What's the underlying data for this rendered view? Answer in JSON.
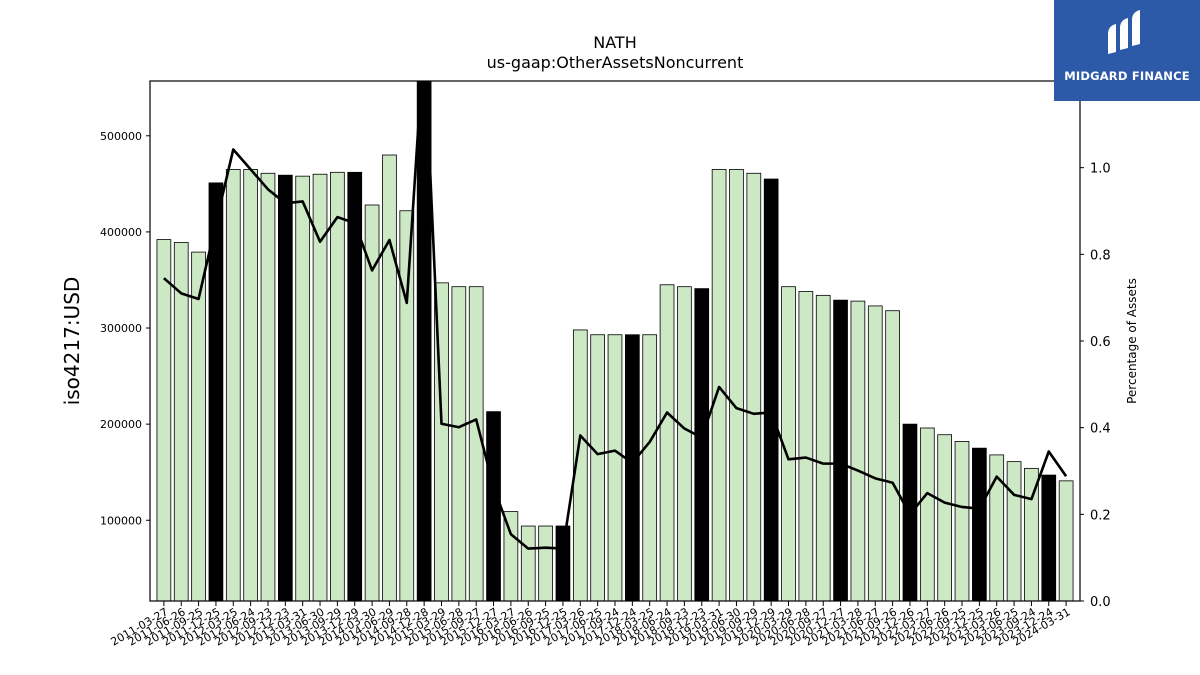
{
  "header": {
    "title": "NATH",
    "subtitle": "us-gaap:OtherAssetsNoncurrent"
  },
  "logo": {
    "name": "MIDGARD FINANCE"
  },
  "colors": {
    "bar_normal": "#cde8c5",
    "bar_highlight": "#000000",
    "line": "#000000"
  },
  "chart_data": {
    "type": "bar",
    "title": "NATH",
    "subtitle": "us-gaap:OtherAssetsNoncurrent",
    "ylabel": "iso4217:USD",
    "ylabel_right": "Percentage of Assets",
    "ylim": [
      16000,
      557000
    ],
    "ylim_right": [
      0.0,
      1.2
    ],
    "yticks": [
      100000,
      200000,
      300000,
      400000,
      500000
    ],
    "yticks_right": [
      0.0,
      0.2,
      0.4,
      0.6,
      0.8,
      1.0
    ],
    "x": [
      "2011-03-27",
      "2011-06-26",
      "2011-09-25",
      "2011-12-25",
      "2012-03-25",
      "2012-06-24",
      "2012-09-23",
      "2012-12-23",
      "2013-03-31",
      "2013-06-30",
      "2013-09-29",
      "2013-12-29",
      "2014-03-30",
      "2014-06-29",
      "2014-09-28",
      "2014-12-28",
      "2015-03-29",
      "2015-06-28",
      "2015-09-27",
      "2015-12-27",
      "2016-03-27",
      "2016-06-26",
      "2016-09-25",
      "2016-12-25",
      "2017-03-26",
      "2017-06-25",
      "2017-09-24",
      "2017-12-24",
      "2018-03-25",
      "2018-06-24",
      "2018-09-23",
      "2018-12-23",
      "2019-03-31",
      "2019-06-30",
      "2019-09-29",
      "2019-12-29",
      "2020-03-29",
      "2020-06-28",
      "2020-09-27",
      "2020-12-27",
      "2021-03-28",
      "2021-06-27",
      "2021-09-26",
      "2021-12-26",
      "2022-03-27",
      "2022-06-26",
      "2022-09-25",
      "2022-12-25",
      "2023-03-26",
      "2023-06-25",
      "2023-09-24",
      "2023-12-24",
      "2024-03-31"
    ],
    "highlight": [
      false,
      false,
      false,
      true,
      false,
      false,
      false,
      true,
      false,
      false,
      false,
      true,
      false,
      false,
      false,
      true,
      false,
      false,
      false,
      true,
      false,
      false,
      false,
      true,
      false,
      false,
      false,
      true,
      false,
      false,
      false,
      true,
      false,
      false,
      false,
      true,
      false,
      false,
      false,
      true,
      false,
      false,
      false,
      true,
      false,
      false,
      false,
      true,
      false,
      false,
      false,
      true,
      false
    ],
    "series": [
      {
        "values": [
          392000,
          389000,
          379000,
          451000,
          465000,
          465000,
          461000,
          459000,
          458000,
          460000,
          462000,
          462000,
          428000,
          480000,
          422000,
          557000,
          347000,
          343000,
          343000,
          213000,
          109000,
          94000,
          94000,
          94000,
          298000,
          293000,
          293000,
          293000,
          293000,
          345000,
          343000,
          341000,
          465000,
          465000,
          461000,
          455000,
          343000,
          338000,
          334000,
          329000,
          328000,
          323000,
          318000,
          200000,
          196000,
          189000,
          182000,
          175000,
          168000,
          161000,
          154000,
          147000,
          141000
        ]
      },
      {
        "axis": "right",
        "values": [
          0.745,
          0.71,
          0.697,
          0.872,
          1.042,
          0.996,
          0.95,
          0.918,
          0.922,
          0.829,
          0.886,
          0.872,
          0.763,
          0.833,
          0.688,
          1.3,
          0.409,
          0.401,
          0.419,
          0.263,
          0.154,
          0.121,
          0.123,
          0.121,
          0.382,
          0.339,
          0.347,
          0.319,
          0.367,
          0.435,
          0.398,
          0.377,
          0.494,
          0.445,
          0.432,
          0.435,
          0.327,
          0.331,
          0.317,
          0.317,
          0.301,
          0.283,
          0.273,
          0.2,
          0.249,
          0.227,
          0.217,
          0.213,
          0.287,
          0.245,
          0.235,
          0.345,
          0.288
        ]
      }
    ]
  }
}
